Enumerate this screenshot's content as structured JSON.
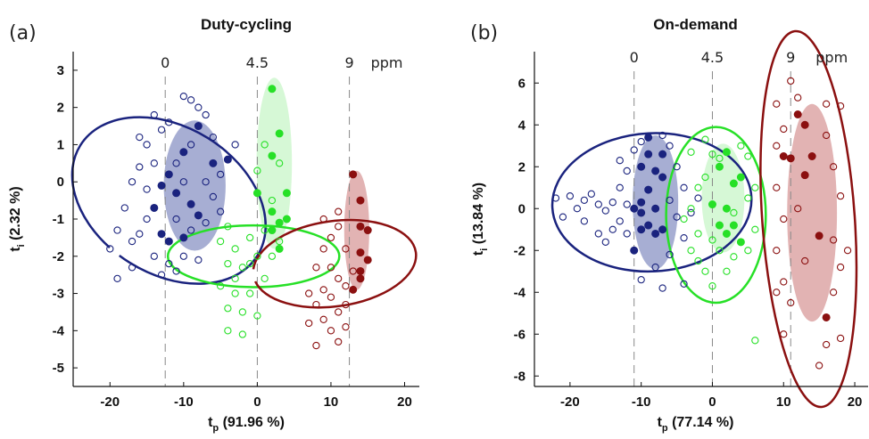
{
  "chart_data": [
    {
      "type": "scatter",
      "panel_label": "(a)",
      "title": "Duty-cycling",
      "xlabel": "t",
      "xlabel_sub": "p",
      "xlabel_rest": " (91.96 %)",
      "ylabel": "t",
      "ylabel_sub": "i",
      "ylabel_rest": " (2.32 %)",
      "xlim": [
        -25,
        22
      ],
      "ylim": [
        -5.5,
        3.5
      ],
      "xticks": [
        -20,
        -10,
        0,
        10,
        20
      ],
      "yticks": [
        3,
        2,
        1,
        0,
        -1,
        -2,
        -3,
        -4,
        -5
      ],
      "top_axis": {
        "labels": [
          "0",
          "4.5",
          "9"
        ],
        "unit": "ppm",
        "x": [
          -12.5,
          0,
          12.5
        ]
      },
      "grid": false,
      "groups": [
        {
          "name": "0",
          "color": "#1a237e",
          "ellipse": {
            "cx": -12,
            "cy": -0.5,
            "rx": 10,
            "ry": 2.8,
            "rot": -58
          },
          "shaded": {
            "cx": -8.5,
            "cy": -0.1,
            "rx": 4.2,
            "ry": 1.75,
            "color": "#8a93c4"
          },
          "filled": [
            [
              -4,
              0.6
            ],
            [
              -6,
              0.5
            ],
            [
              -8,
              1.5
            ],
            [
              -10,
              0.8
            ],
            [
              -11,
              -0.3
            ],
            [
              -12,
              0.2
            ],
            [
              -9,
              -0.6
            ],
            [
              -8,
              -0.9
            ],
            [
              -10,
              -1.5
            ],
            [
              -12,
              -1.6
            ],
            [
              -13,
              -1.4
            ],
            [
              -13,
              -0.1
            ],
            [
              -14,
              -0.7
            ]
          ],
          "open": [
            [
              -15,
              1
            ],
            [
              -12,
              1.6
            ],
            [
              -9,
              2.2
            ],
            [
              -14,
              0.5
            ],
            [
              -16,
              0.4
            ],
            [
              -17,
              0
            ],
            [
              -15,
              -0.2
            ],
            [
              -18,
              -0.7
            ],
            [
              -19,
              -1.3
            ],
            [
              -16,
              -1.4
            ],
            [
              -14,
              -2
            ],
            [
              -17,
              -2.3
            ],
            [
              -19,
              -2.6
            ],
            [
              -12,
              -2.2
            ],
            [
              -10,
              -2
            ],
            [
              -8,
              -2.1
            ],
            [
              -11,
              -1
            ],
            [
              -7,
              0
            ],
            [
              -6,
              -0.4
            ],
            [
              -5,
              -0.8
            ],
            [
              -6,
              1.2
            ],
            [
              -8,
              2
            ],
            [
              -13,
              1.4
            ],
            [
              -9,
              1
            ],
            [
              -11,
              0.5
            ],
            [
              -10,
              0
            ],
            [
              -15,
              -1
            ],
            [
              -13,
              -2.5
            ],
            [
              -11,
              -2.4
            ],
            [
              -9,
              -1.3
            ],
            [
              -7,
              -1.1
            ],
            [
              -17,
              -1.6
            ],
            [
              -20,
              -1.8
            ],
            [
              -16,
              1.2
            ],
            [
              -14,
              1.8
            ],
            [
              -10,
              2.3
            ],
            [
              -7,
              1.8
            ],
            [
              -5,
              0.2
            ],
            [
              -3,
              1
            ]
          ]
        },
        {
          "name": "4.5",
          "color": "#27e027",
          "ellipse": {
            "cx": -0.5,
            "cy": -2,
            "rx": 4.2,
            "ry": 2.3,
            "rot": -90
          },
          "shaded": {
            "cx": 2.3,
            "cy": 0.5,
            "rx": 2.4,
            "ry": 2.3,
            "color": "#c8f5c8"
          },
          "filled": [
            [
              2,
              2.5
            ],
            [
              3,
              1.3
            ],
            [
              2,
              0.7
            ],
            [
              0,
              -0.3
            ],
            [
              4,
              -0.3
            ],
            [
              2,
              -0.8
            ],
            [
              4,
              -1
            ],
            [
              3,
              -1.1
            ],
            [
              2,
              -1.3
            ],
            [
              3,
              -1.8
            ]
          ],
          "open": [
            [
              1,
              1
            ],
            [
              3,
              0.5
            ],
            [
              0,
              0.3
            ],
            [
              2,
              -0.5
            ],
            [
              1,
              -1.3
            ],
            [
              3,
              -1.6
            ],
            [
              -1,
              -1.5
            ],
            [
              -3,
              -1.8
            ],
            [
              -2,
              -2.3
            ],
            [
              -4,
              -2.2
            ],
            [
              -3,
              -2.6
            ],
            [
              -1,
              -3
            ],
            [
              -4,
              -3.4
            ],
            [
              -2,
              -3.5
            ],
            [
              -5,
              -2.8
            ],
            [
              -1,
              -2.2
            ],
            [
              0,
              -2
            ],
            [
              -3,
              -3
            ],
            [
              1,
              -2.6
            ],
            [
              -2,
              -4.1
            ],
            [
              -4,
              -1.2
            ],
            [
              -5,
              -1.6
            ],
            [
              0,
              -3.6
            ],
            [
              2,
              -2
            ],
            [
              -4,
              -4
            ]
          ]
        },
        {
          "name": "9",
          "color": "#8b1010",
          "ellipse": {
            "cx": 10.5,
            "cy": -2.2,
            "rx": 5.8,
            "ry": 2.2,
            "rot": -98
          },
          "shaded": {
            "cx": 13.5,
            "cy": -1.3,
            "rx": 1.7,
            "ry": 1.6,
            "color": "#d89a9a"
          },
          "filled": [
            [
              13,
              0.2
            ],
            [
              14,
              -0.5
            ],
            [
              14,
              -1.2
            ],
            [
              15,
              -1.3
            ],
            [
              14,
              -1.9
            ],
            [
              15,
              -2.1
            ],
            [
              14,
              -2.4
            ],
            [
              13,
              -2.9
            ],
            [
              14,
              -2.6
            ]
          ],
          "open": [
            [
              9,
              -1
            ],
            [
              11,
              -0.8
            ],
            [
              10,
              -1.5
            ],
            [
              12,
              -1.8
            ],
            [
              10,
              -2.3
            ],
            [
              8,
              -2.3
            ],
            [
              11,
              -2.6
            ],
            [
              9,
              -2.9
            ],
            [
              7,
              -3
            ],
            [
              8,
              -3.3
            ],
            [
              10,
              -3.1
            ],
            [
              12,
              -2.8
            ],
            [
              11,
              -3.5
            ],
            [
              9,
              -3.7
            ],
            [
              12,
              -3.9
            ],
            [
              10,
              -4
            ],
            [
              11,
              -4.3
            ],
            [
              8,
              -4.4
            ],
            [
              7,
              -3.8
            ],
            [
              12,
              -3.3
            ],
            [
              11,
              -1.2
            ],
            [
              13,
              -2.4
            ],
            [
              9,
              -1.8
            ]
          ]
        }
      ]
    },
    {
      "type": "scatter",
      "panel_label": "(b)",
      "title": "On-demand",
      "xlabel": "t",
      "xlabel_sub": "p",
      "xlabel_rest": " (77.14 %)",
      "ylabel": "t",
      "ylabel_sub": "i",
      "ylabel_rest": " (13.84 %)",
      "xlim": [
        -25,
        22
      ],
      "ylim": [
        -8.5,
        7.5
      ],
      "xticks": [
        -20,
        -10,
        0,
        10,
        20
      ],
      "yticks": [
        6,
        4,
        2,
        0,
        -2,
        -4,
        -6,
        -8
      ],
      "top_axis": {
        "labels": [
          "0",
          "4.5",
          "9"
        ],
        "unit": "ppm",
        "x": [
          -11,
          0,
          11
        ]
      },
      "grid": false,
      "groups": [
        {
          "name": "0",
          "color": "#1a237e",
          "ellipse": {
            "cx": -8.5,
            "cy": 0.3,
            "rx": 14,
            "ry": 3.3,
            "rot": -3
          },
          "shaded": {
            "cx": -8,
            "cy": 0.3,
            "rx": 3.2,
            "ry": 3.2,
            "color": "#8a93c4"
          },
          "filled": [
            [
              -9,
              3.4
            ],
            [
              -9,
              2.6
            ],
            [
              -10,
              2
            ],
            [
              -8,
              1.8
            ],
            [
              -7,
              1.5
            ],
            [
              -9,
              0.9
            ],
            [
              -10,
              0.3
            ],
            [
              -8,
              0
            ],
            [
              -11,
              0
            ],
            [
              -9,
              -0.8
            ],
            [
              -10,
              -1
            ],
            [
              -8,
              -1.2
            ],
            [
              -7,
              -1
            ],
            [
              -11,
              -2
            ],
            [
              -7,
              2.6
            ],
            [
              -10,
              -0.2
            ]
          ],
          "open": [
            [
              -22,
              0.5
            ],
            [
              -20,
              0.6
            ],
            [
              -18,
              0.4
            ],
            [
              -19,
              0
            ],
            [
              -21,
              -0.4
            ],
            [
              -17,
              0.7
            ],
            [
              -16,
              0.2
            ],
            [
              -15,
              -0.1
            ],
            [
              -14,
              0.3
            ],
            [
              -13,
              1
            ],
            [
              -13,
              -0.6
            ],
            [
              -12,
              1.8
            ],
            [
              -12,
              -1.2
            ],
            [
              -14,
              -1
            ],
            [
              -15,
              -1.6
            ],
            [
              -11,
              2.8
            ],
            [
              -10,
              3.2
            ],
            [
              -7,
              3.5
            ],
            [
              -6,
              3
            ],
            [
              -5,
              2
            ],
            [
              -6,
              0.4
            ],
            [
              -5,
              -0.4
            ],
            [
              -4,
              -1.4
            ],
            [
              -6,
              -2.2
            ],
            [
              -8,
              -2.8
            ],
            [
              -10,
              -3.4
            ],
            [
              -7,
              -3.8
            ],
            [
              -4,
              -3.6
            ],
            [
              -12,
              0.2
            ],
            [
              -16,
              -1.2
            ],
            [
              -18,
              -0.6
            ],
            [
              -13,
              2.3
            ],
            [
              -4,
              1
            ],
            [
              -3,
              -0.2
            ],
            [
              -2,
              0.5
            ]
          ]
        },
        {
          "name": "4.5",
          "color": "#27e027",
          "ellipse": {
            "cx": 0.5,
            "cy": -0.3,
            "rx": 7,
            "ry": 4.2,
            "rot": 0
          },
          "shaded": {
            "cx": 1.5,
            "cy": 0.5,
            "rx": 3,
            "ry": 2.6,
            "color": "#c8f5c8"
          },
          "filled": [
            [
              2,
              2.7
            ],
            [
              3,
              1.2
            ],
            [
              4,
              1.5
            ],
            [
              0,
              0.2
            ],
            [
              2,
              0
            ],
            [
              1,
              -0.8
            ],
            [
              3,
              -0.8
            ],
            [
              4,
              -1.6
            ],
            [
              1,
              2
            ],
            [
              2,
              -1.2
            ]
          ],
          "open": [
            [
              -3,
              2.7
            ],
            [
              -1,
              3.3
            ],
            [
              0,
              2.6
            ],
            [
              1,
              2.4
            ],
            [
              4,
              3
            ],
            [
              5,
              2.5
            ],
            [
              6,
              1
            ],
            [
              -2,
              1
            ],
            [
              -3,
              0
            ],
            [
              -4,
              -0.5
            ],
            [
              -3,
              -2
            ],
            [
              -2,
              -2.5
            ],
            [
              -1,
              -3
            ],
            [
              0,
              -3.7
            ],
            [
              2,
              -3
            ],
            [
              3,
              -2.3
            ],
            [
              5,
              -2
            ],
            [
              6,
              -1
            ],
            [
              -1,
              1.5
            ],
            [
              1,
              -2
            ],
            [
              3,
              -0.2
            ],
            [
              5,
              0.5
            ],
            [
              -2,
              -1.2
            ],
            [
              0,
              -1.5
            ],
            [
              6,
              -6.3
            ]
          ]
        },
        {
          "name": "9",
          "color": "#8b1010",
          "ellipse": {
            "cx": 13.5,
            "cy": -0.5,
            "rx": 6.5,
            "ry": 9,
            "rot": -4
          },
          "shaded": {
            "cx": 14,
            "cy": -0.2,
            "rx": 3.5,
            "ry": 5.2,
            "color": "#d89a9a"
          },
          "filled": [
            [
              12,
              4.5
            ],
            [
              13,
              4
            ],
            [
              11,
              2.4
            ],
            [
              13,
              1.6
            ],
            [
              14,
              2.5
            ],
            [
              10,
              2.5
            ],
            [
              15,
              -1.3
            ],
            [
              16,
              -5.2
            ]
          ],
          "open": [
            [
              11,
              6.1
            ],
            [
              12,
              5.3
            ],
            [
              16,
              5
            ],
            [
              18,
              4.9
            ],
            [
              10,
              3.8
            ],
            [
              16,
              3.5
            ],
            [
              9,
              3
            ],
            [
              17,
              2
            ],
            [
              9,
              1
            ],
            [
              18,
              0.6
            ],
            [
              10,
              -0.5
            ],
            [
              17,
              -1.5
            ],
            [
              9,
              -2
            ],
            [
              18,
              -2.8
            ],
            [
              10,
              -3.5
            ],
            [
              17,
              -4
            ],
            [
              11,
              -4.5
            ],
            [
              18,
              -6.2
            ],
            [
              10,
              -6
            ],
            [
              16,
              -6.5
            ],
            [
              15,
              -7.5
            ],
            [
              9,
              -4
            ],
            [
              19,
              -2
            ],
            [
              12,
              0
            ],
            [
              13,
              -2.5
            ],
            [
              9,
              5
            ]
          ]
        }
      ]
    }
  ]
}
